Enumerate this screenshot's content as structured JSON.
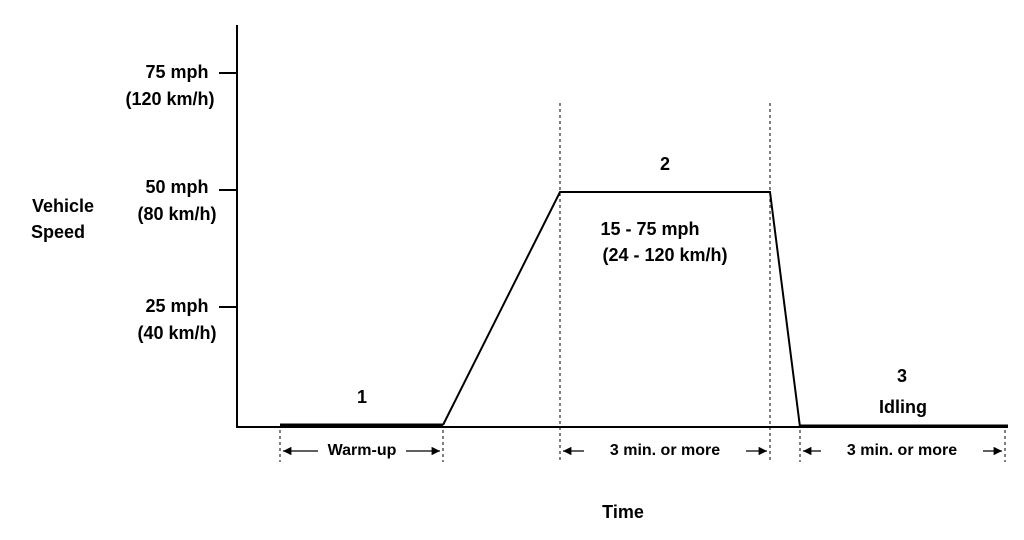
{
  "y_axis_title": [
    "Vehicle",
    "Speed"
  ],
  "y_ticks": [
    {
      "mph": "75 mph",
      "kmh": "(120 km/h)"
    },
    {
      "mph": "50 mph",
      "kmh": "(80 km/h)"
    },
    {
      "mph": "25 mph",
      "kmh": "(40 km/h)"
    }
  ],
  "phases": [
    {
      "number": "1",
      "duration": "Warm-up"
    },
    {
      "number": "2",
      "speed": "15 - 75 mph",
      "speed_kmh": "(24 - 120 km/h)",
      "duration": "3 min. or more"
    },
    {
      "number": "3",
      "label": "Idling",
      "duration": "3 min. or more"
    }
  ],
  "x_axis_title": "Time"
}
